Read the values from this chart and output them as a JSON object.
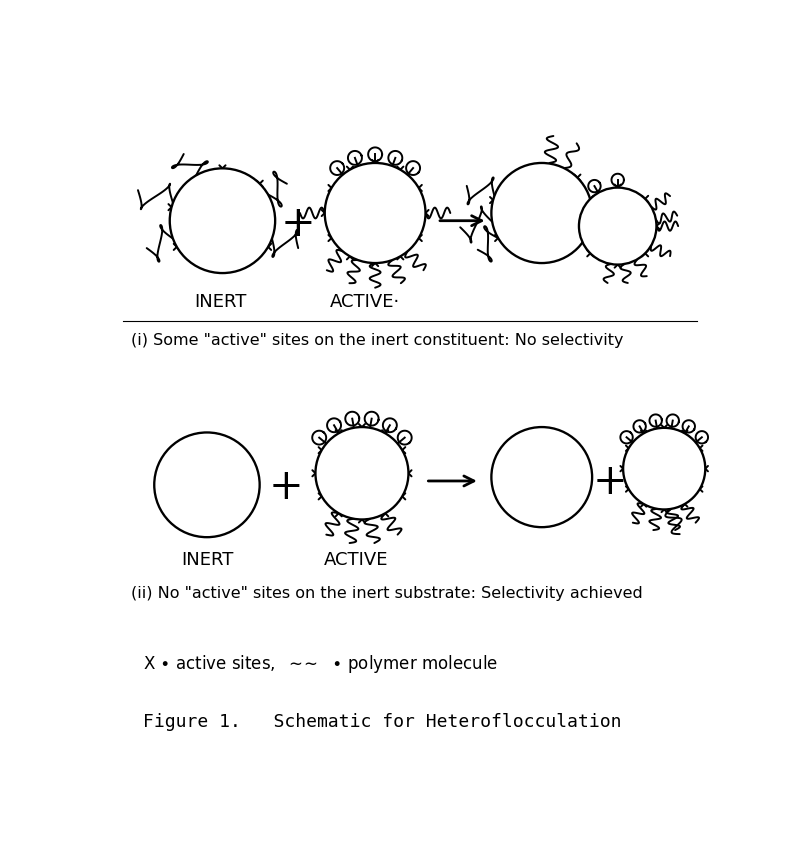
{
  "title": "Figure 1.   Schematic for Heteroflocculation",
  "caption_i": "(i) Some \"active\" sites on the inert constituent: No selectivity",
  "caption_ii": "(ii) No \"active\" sites on the inert substrate: Selectivity achieved",
  "legend": "X • active sites,  ∪∪  • polymer molecule",
  "label_inert_top": "INERT",
  "label_active_top": "ACTIVE·",
  "label_inert_bot": "INERT",
  "label_active_bot": "ACTIVE",
  "bg_color": "#ffffff",
  "fig_width": 8.0,
  "fig_height": 8.53
}
